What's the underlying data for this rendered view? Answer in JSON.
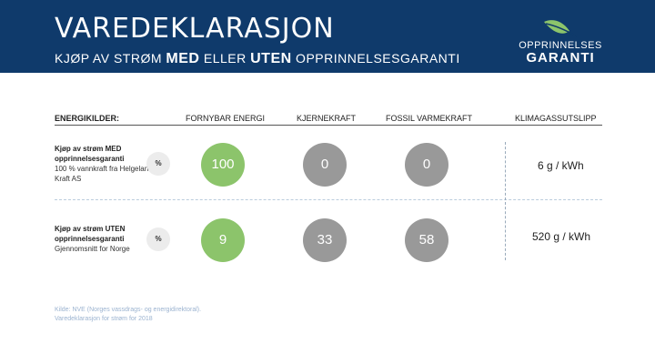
{
  "header": {
    "title": "VAREDEKLARASJON",
    "subtitle_pre": "KJØP AV STRØM ",
    "subtitle_med": "MED",
    "subtitle_mid": " ELLER ",
    "subtitle_uten": "UTEN",
    "subtitle_post": " OPPRINNELSESGARANTI"
  },
  "logo": {
    "line1": "OPPRINNELSES",
    "line2": "GARANTI",
    "leaf_color": "#8cc46b"
  },
  "columns": {
    "energy_sources": "ENERGIKILDER:",
    "renewable": "FORNYBAR ENERGI",
    "nuclear": "KJERNEKRAFT",
    "fossil": "FOSSIL VARMEKRAFT",
    "emissions": "KLIMAGASSUTSLIPP"
  },
  "rows": [
    {
      "label_bold": "Kjøp av strøm MED opprinnelsesgaranti",
      "label_sub": "100 % vannkraft fra Helgeland Kraft AS",
      "unit": "%",
      "renewable": "100",
      "nuclear": "0",
      "fossil": "0",
      "emissions": "6 g / kWh"
    },
    {
      "label_bold": "Kjøp av strøm UTEN opprinnelsesgaranti",
      "label_sub": "Gjennomsnitt for Norge",
      "unit": "%",
      "renewable": "9",
      "nuclear": "33",
      "fossil": "58",
      "emissions": "520 g / kWh"
    }
  ],
  "source": {
    "line1": "Kilde: NVE (Norges vassdrags- og energidirektoral).",
    "line2": "Varedeklarasjon for strøm for 2018"
  },
  "colors": {
    "header_bg": "#0f3a6b",
    "renewable": "#8cc46b",
    "non_renewable": "#999999"
  }
}
